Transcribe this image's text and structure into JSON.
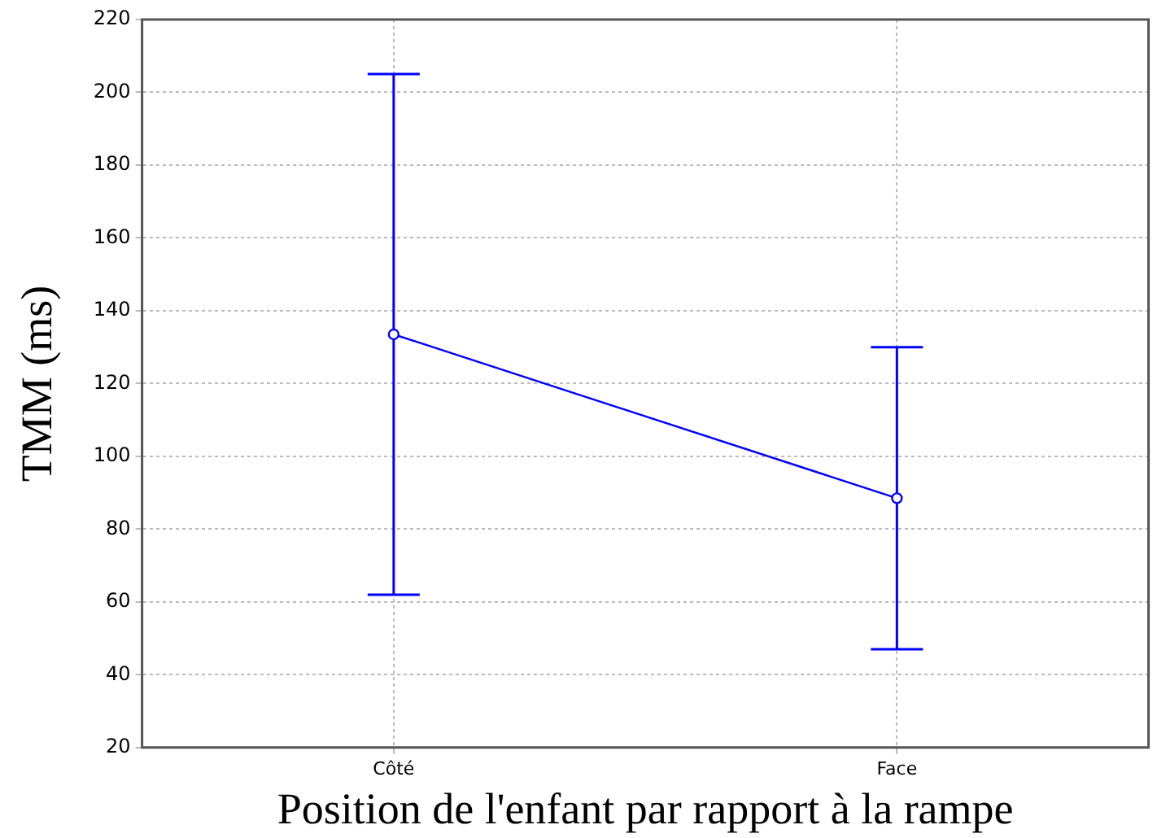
{
  "chart_data": {
    "type": "line",
    "xlabel": "Position de l'enfant par rapport à la rampe",
    "ylabel": "TMM (ms)",
    "categories": [
      "Côté",
      "Face"
    ],
    "series": [
      {
        "color": "#0000ff",
        "values": [
          133.5,
          88.5
        ],
        "errors": [
          71.5,
          41.5
        ]
      }
    ],
    "ylim": [
      20,
      220
    ],
    "yticks": [
      20,
      40,
      60,
      80,
      100,
      120,
      140,
      160,
      180,
      200,
      220
    ],
    "grid": true,
    "legend": false,
    "marker": "circle",
    "line_style": "solid"
  }
}
